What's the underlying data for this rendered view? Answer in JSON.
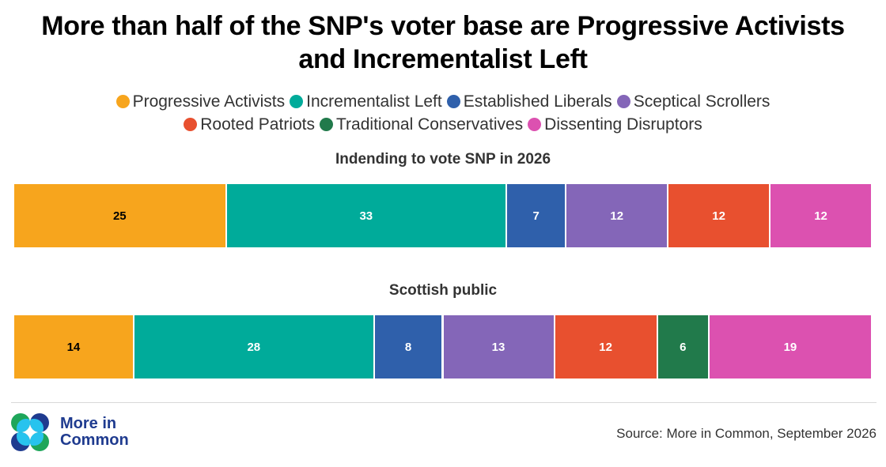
{
  "chart_data": {
    "type": "bar",
    "orientation": "horizontal-stacked-100",
    "title": "More than half of the SNP's voter base are Progressive Activists and Incrementalist Left",
    "title_lines": [
      "More than half of the SNP's voter base are Progressive Activists",
      "and Incrementalist Left"
    ],
    "legend_position": "top-center",
    "categories": [
      "Progressive Activists",
      "Incrementalist Left",
      "Established Liberals",
      "Sceptical Scrollers",
      "Rooted Patriots",
      "Traditional Conservatives",
      "Dissenting Disruptors"
    ],
    "colors": [
      "#f7a51d",
      "#00ab9a",
      "#2f60ab",
      "#8466b8",
      "#e8502f",
      "#217a4b",
      "#dc51b0"
    ],
    "label_colors": [
      "#000000",
      "#ffffff",
      "#ffffff",
      "#ffffff",
      "#ffffff",
      "#ffffff",
      "#ffffff"
    ],
    "series": [
      {
        "name": "Indending to vote SNP in 2026",
        "values": [
          25,
          33,
          7,
          12,
          12,
          0,
          12
        ]
      },
      {
        "name": "Scottish public",
        "values": [
          14,
          28,
          8,
          13,
          12,
          6,
          19
        ]
      }
    ],
    "xlabel": "",
    "ylabel": "",
    "grid": false
  },
  "legend_rows": [
    [
      0,
      1,
      2,
      3
    ],
    [
      4,
      5,
      6
    ]
  ],
  "footer": {
    "logo_line1": "More in",
    "logo_line2": "Common",
    "source": "Source: More in Common, September 2026"
  }
}
